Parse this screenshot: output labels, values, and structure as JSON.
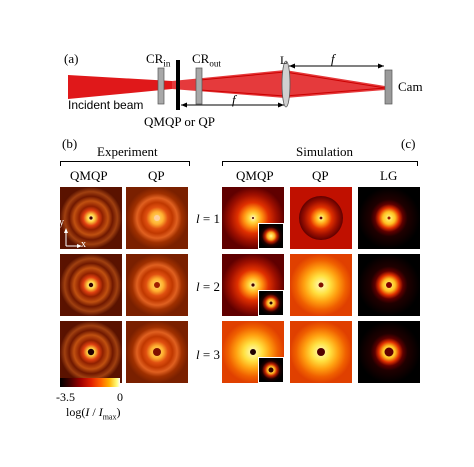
{
  "panel_a": {
    "label": "(a)",
    "cr_in": {
      "base": "CR",
      "sub": "in"
    },
    "cr_out": {
      "base": "CR",
      "sub": "out"
    },
    "lens": "L",
    "focal": "f",
    "camera": "Cam",
    "incident": "Incident beam",
    "plate": "QMQP or QP",
    "colors": {
      "beam": "#e0181a",
      "element": "#9a9a9a"
    }
  },
  "panel_b": {
    "label": "(b)",
    "title": "Experiment",
    "columns": [
      "QMQP",
      "QP"
    ],
    "axis_y": "y",
    "axis_x": "x"
  },
  "panel_c": {
    "label": "(c)",
    "title": "Simulation",
    "columns": [
      "QMQP",
      "QP",
      "LG"
    ]
  },
  "rows": [
    {
      "sym": "l",
      "eq": " = 1"
    },
    {
      "sym": "l",
      "eq": " = 2"
    },
    {
      "sym": "l",
      "eq": " = 3"
    }
  ],
  "colorbar": {
    "min": "-3.5",
    "max": "0",
    "label_pre": "log(",
    "label_mid": "I",
    "label_sep": " / ",
    "label_den": "I",
    "label_sub": "max",
    "label_post": ")"
  }
}
